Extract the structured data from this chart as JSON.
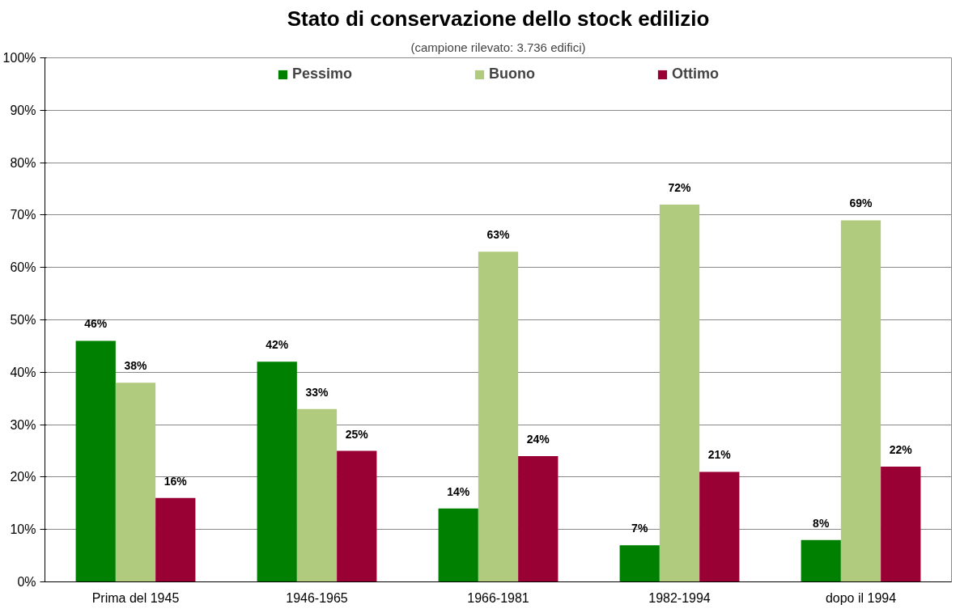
{
  "chart_data": {
    "type": "bar",
    "title": "Stato di conservazione dello stock edilizio",
    "subtitle": "(campione rilevato: 3.736 edifici)",
    "categories": [
      "Prima del 1945",
      "1946-1965",
      "1966-1981",
      "1982-1994",
      "dopo il 1994"
    ],
    "series": [
      {
        "name": "Pessimo",
        "color": "#008000",
        "values": [
          46,
          42,
          14,
          7,
          8
        ],
        "value_labels": [
          "46%",
          "42%",
          "14%",
          "7%",
          "8%"
        ]
      },
      {
        "name": "Buono",
        "color": "#b0cb7e",
        "values": [
          38,
          33,
          63,
          72,
          69
        ],
        "value_labels": [
          "38%",
          "33%",
          "63%",
          "72%",
          "69%"
        ]
      },
      {
        "name": "Ottimo",
        "color": "#990033",
        "values": [
          16,
          25,
          24,
          21,
          22
        ],
        "value_labels": [
          "16%",
          "25%",
          "24%",
          "21%",
          "22%"
        ]
      }
    ],
    "ylim": [
      0,
      100
    ],
    "yticks": [
      {
        "value": 0,
        "label": "0%"
      },
      {
        "value": 10,
        "label": "10%"
      },
      {
        "value": 20,
        "label": "20%"
      },
      {
        "value": 30,
        "label": "30%"
      },
      {
        "value": 40,
        "label": "40%"
      },
      {
        "value": 50,
        "label": "50%"
      },
      {
        "value": 60,
        "label": "60%"
      },
      {
        "value": 70,
        "label": "70%"
      },
      {
        "value": 80,
        "label": "80%"
      },
      {
        "value": 90,
        "label": "90%"
      },
      {
        "value": 100,
        "label": "100%"
      }
    ],
    "grid": "y",
    "legend": "top"
  }
}
